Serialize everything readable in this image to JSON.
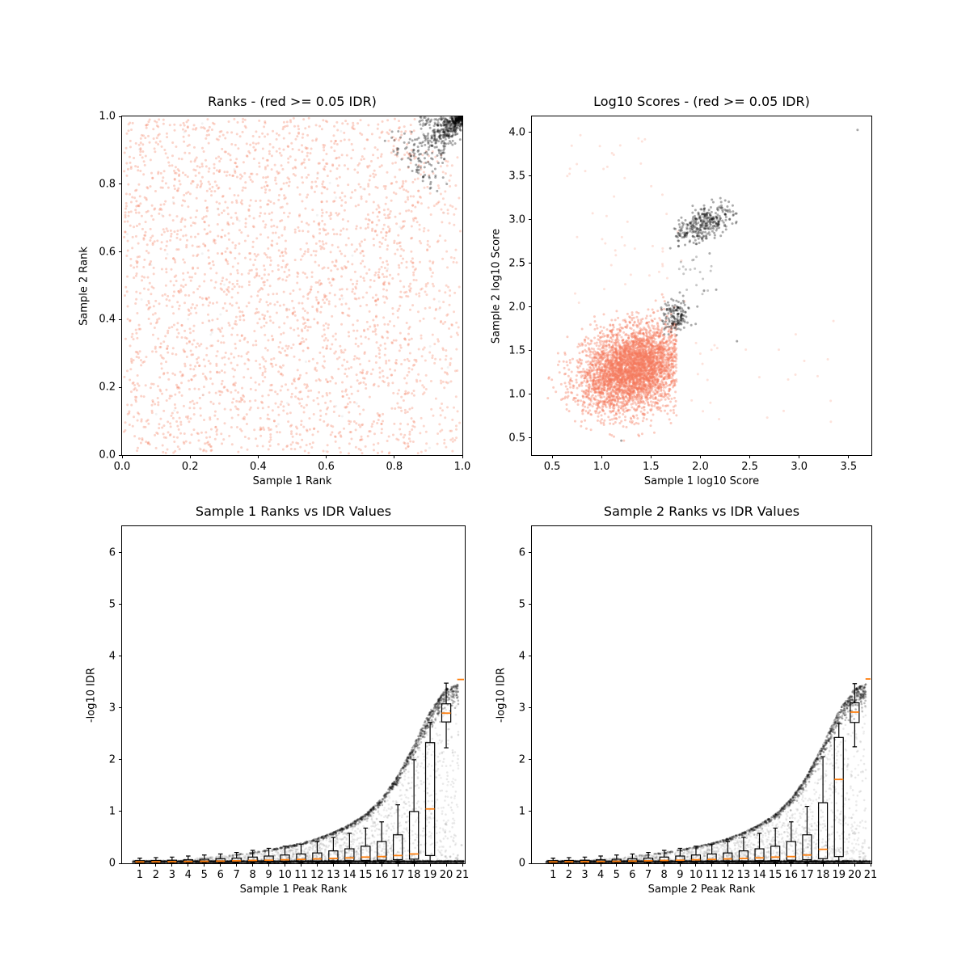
{
  "figure": {
    "background": "#ffffff"
  },
  "colors": {
    "red_point": "#f4795b",
    "black_point": "#000000",
    "gray_point": "#808080",
    "median_orange": "#ff7f0e",
    "box_edge": "#000000",
    "spine": "#000000",
    "text": "#000000"
  },
  "chart_data": [
    {
      "id": "ranks-scatter",
      "type": "scatter",
      "title": "Ranks - (red >= 0.05 IDR)",
      "xlabel": "Sample 1 Rank",
      "ylabel": "Sample 2 Rank",
      "xlim": [
        0,
        1
      ],
      "ylim": [
        0,
        1
      ],
      "grid": false,
      "xticks": {
        "vals": [
          0.0,
          0.2,
          0.4,
          0.6,
          0.8,
          1.0
        ],
        "labels": [
          "0.0",
          "0.2",
          "0.4",
          "0.6",
          "0.8",
          "1.0"
        ]
      },
      "yticks": {
        "vals": [
          0.0,
          0.2,
          0.4,
          0.6,
          0.8,
          1.0
        ],
        "labels": [
          "0.0",
          "0.2",
          "0.4",
          "0.6",
          "0.8",
          "1.0"
        ]
      },
      "legend_note": "red points = IDR >= 0.05 (irreproducible), black points = IDR < 0.05 (reproducible, clustered at top-right corner)",
      "clusters": [
        {
          "type": "uniform",
          "n": 2600,
          "x": [
            0.005,
            0.862
          ],
          "y": [
            0.005,
            0.995
          ],
          "color": "red",
          "alpha": 0.32,
          "r": 1.5
        },
        {
          "type": "uniform",
          "n": 240,
          "x": [
            0.862,
            0.995
          ],
          "y": [
            0.005,
            0.9
          ],
          "color": "red",
          "alpha": 0.3,
          "r": 1.5
        },
        {
          "type": "uniform",
          "n": 50,
          "x": [
            0.01,
            0.99
          ],
          "y": [
            0.01,
            0.99
          ],
          "color": "gray",
          "alpha": 0.1,
          "r": 1.5
        },
        {
          "type": "comet",
          "n": 500,
          "x0": 0.999,
          "y0": 0.999,
          "len": 0.155,
          "s0": 0.004,
          "s1": 0.05,
          "bias": 1.8,
          "color": "black",
          "alpha": 0.33,
          "r": 1.5
        },
        {
          "type": "uniform",
          "n": 70,
          "x": [
            0.875,
            0.999
          ],
          "y": [
            0.972,
            0.999
          ],
          "color": "black",
          "alpha": 0.3,
          "r": 1.5
        }
      ]
    },
    {
      "id": "log10-scores-scatter",
      "type": "scatter",
      "title": "Log10 Scores - (red >= 0.05 IDR)",
      "xlabel": "Sample 1 log10 Score",
      "ylabel": "Sample 2 log10 Score",
      "xlim": [
        0.295,
        3.73
      ],
      "ylim": [
        0.305,
        4.185
      ],
      "grid": false,
      "xticks": {
        "vals": [
          0.5,
          1.0,
          1.5,
          2.0,
          2.5,
          3.0,
          3.5
        ],
        "labels": [
          "0.5",
          "1.0",
          "1.5",
          "2.0",
          "2.5",
          "3.0",
          "3.5"
        ]
      },
      "yticks": {
        "vals": [
          0.5,
          1.0,
          1.5,
          2.0,
          2.5,
          3.0,
          3.5,
          4.0
        ],
        "labels": [
          "0.5",
          "1.0",
          "1.5",
          "2.0",
          "2.5",
          "3.0",
          "3.5",
          "4.0"
        ]
      },
      "legend_note": "red cluster centered near (1.3,1.3); black reproducible clusters near (1.75,1.9) and (2.0,3.0); lone black point near (3.6,4.0)",
      "clusters": [
        {
          "type": "gauss",
          "n": 3900,
          "cx": 1.32,
          "cy": 1.3,
          "sx": 0.27,
          "sy": 0.25,
          "corr": 0.25,
          "clipx": [
            0.44,
            1.76
          ],
          "clipy": [
            0.46,
            2.25
          ],
          "color": "red",
          "alpha": 0.38,
          "r": 1.5
        },
        {
          "type": "uniform",
          "n": 50,
          "x": [
            0.62,
            1.85
          ],
          "y": [
            2.0,
            4.05
          ],
          "color": "red",
          "alpha": 0.22,
          "r": 1.5
        },
        {
          "type": "uniform",
          "n": 26,
          "x": [
            1.85,
            3.35
          ],
          "y": [
            0.6,
            1.85
          ],
          "color": "red",
          "alpha": 0.22,
          "r": 1.5
        },
        {
          "type": "gauss",
          "n": 320,
          "cx": 2.02,
          "cy": 2.95,
          "sx": 0.15,
          "sy": 0.11,
          "corr": 0.55,
          "clipx": [
            1.68,
            2.38
          ],
          "clipy": [
            2.42,
            3.25
          ],
          "color": "black",
          "alpha": 0.33,
          "r": 1.5
        },
        {
          "type": "gauss",
          "n": 150,
          "cx": 1.74,
          "cy": 1.88,
          "sx": 0.08,
          "sy": 0.11,
          "corr": 0.2,
          "clipx": [
            1.6,
            2.02
          ],
          "clipy": [
            1.68,
            2.3
          ],
          "color": "black",
          "alpha": 0.33,
          "r": 1.5
        },
        {
          "type": "uniform",
          "n": 20,
          "x": [
            1.78,
            2.12
          ],
          "y": [
            2.15,
            2.58
          ],
          "color": "black",
          "alpha": 0.22,
          "r": 1.5
        },
        {
          "type": "points",
          "pts": [
            [
              3.59,
              4.03
            ],
            [
              2.37,
              1.61
            ],
            [
              2.16,
              2.2
            ],
            [
              1.2,
              0.47
            ]
          ],
          "color": "black",
          "alpha": 0.35,
          "r": 1.5
        }
      ]
    },
    {
      "id": "sample1-rank-idr",
      "type": "box_scatter",
      "title": "Sample 1 Ranks vs IDR Values",
      "xlabel": "Sample 1 Peak Rank",
      "ylabel": "-log10 IDR",
      "xlim": [
        -0.1,
        21.15
      ],
      "ylim": [
        0,
        6.51
      ],
      "grid": false,
      "xticks": {
        "vals": [
          1,
          2,
          3,
          4,
          5,
          6,
          7,
          8,
          9,
          10,
          11,
          12,
          13,
          14,
          15,
          16,
          17,
          18,
          19,
          20,
          21
        ],
        "labels": [
          "1",
          "2",
          "3",
          "4",
          "5",
          "6",
          "7",
          "8",
          "9",
          "10",
          "11",
          "12",
          "13",
          "14",
          "15",
          "16",
          "17",
          "18",
          "19",
          "20",
          "21"
        ]
      },
      "yticks": {
        "vals": [
          0,
          1,
          2,
          3,
          4,
          5,
          6
        ],
        "labels": [
          "0",
          "1",
          "2",
          "3",
          "4",
          "5",
          "6"
        ]
      },
      "envelope": [
        0.04,
        0.05,
        0.06,
        0.07,
        0.09,
        0.11,
        0.14,
        0.17,
        0.21,
        0.26,
        0.32,
        0.39,
        0.48,
        0.6,
        0.75,
        0.95,
        1.25,
        1.7,
        2.3,
        2.95,
        3.38,
        3.5
      ],
      "boxes": [
        [
          1,
          0.005,
          0.012,
          0.028,
          0.05,
          0.1
        ],
        [
          2,
          0.005,
          0.013,
          0.03,
          0.055,
          0.11
        ],
        [
          3,
          0.005,
          0.015,
          0.032,
          0.06,
          0.12
        ],
        [
          4,
          0.005,
          0.016,
          0.035,
          0.068,
          0.14
        ],
        [
          5,
          0.005,
          0.018,
          0.038,
          0.078,
          0.16
        ],
        [
          6,
          0.005,
          0.02,
          0.042,
          0.09,
          0.18
        ],
        [
          7,
          0.005,
          0.022,
          0.048,
          0.1,
          0.21
        ],
        [
          8,
          0.005,
          0.025,
          0.055,
          0.12,
          0.25
        ],
        [
          9,
          0.005,
          0.028,
          0.06,
          0.14,
          0.29
        ],
        [
          10,
          0.005,
          0.032,
          0.068,
          0.16,
          0.33
        ],
        [
          11,
          0.005,
          0.035,
          0.075,
          0.18,
          0.37
        ],
        [
          12,
          0.005,
          0.04,
          0.085,
          0.2,
          0.42
        ],
        [
          13,
          0.005,
          0.045,
          0.095,
          0.24,
          0.5
        ],
        [
          14,
          0.005,
          0.05,
          0.105,
          0.28,
          0.58
        ],
        [
          15,
          0.005,
          0.055,
          0.12,
          0.33,
          0.68
        ],
        [
          16,
          0.005,
          0.06,
          0.13,
          0.42,
          0.8
        ],
        [
          17,
          0.005,
          0.07,
          0.15,
          0.55,
          1.13
        ],
        [
          18,
          0.01,
          0.08,
          0.18,
          1.0,
          2.0
        ],
        [
          19,
          0.03,
          0.15,
          1.05,
          2.33,
          2.72
        ],
        [
          20,
          2.23,
          2.73,
          2.9,
          3.08,
          3.48
        ],
        [
          21,
          null,
          null,
          3.55,
          null,
          null
        ]
      ],
      "clusters": [
        {
          "type": "uniform",
          "n": 2400,
          "x": [
            0.55,
            21.1
          ],
          "y": [
            0.012,
            0.05
          ],
          "color": "black",
          "alpha": 0.16,
          "r": 1.3
        },
        {
          "type": "uniform",
          "n": 1300,
          "x": [
            0.55,
            21.1
          ],
          "y": [
            0.02,
            0.04
          ],
          "color": "black",
          "alpha": 0.2,
          "r": 1.2
        },
        {
          "type": "curve",
          "n": 950,
          "xr": [
            5.5,
            20.75
          ],
          "bias": 0.45,
          "jit": 0.05,
          "color": "black",
          "alpha": 0.26,
          "r": 1.3
        },
        {
          "type": "wedge",
          "n": 1500,
          "xr": [
            3.5,
            20.75
          ],
          "pow": 1.9,
          "color": "black",
          "alpha": 0.09,
          "r": 1.3
        },
        {
          "type": "wedge",
          "n": 500,
          "xr": [
            10,
            20.75
          ],
          "pow": 1.1,
          "color": "black",
          "alpha": 0.07,
          "r": 1.3
        },
        {
          "type": "points",
          "pts": [
            [
              19.93,
              0.6
            ],
            [
              20.25,
              0.13
            ],
            [
              20.6,
              0.1
            ],
            [
              20.95,
              0.35
            ],
            [
              20.4,
              0.02
            ]
          ],
          "color": "black",
          "alpha": 0.15,
          "r": 1.4
        }
      ]
    },
    {
      "id": "sample2-rank-idr",
      "type": "box_scatter",
      "title": "Sample 2 Ranks vs IDR Values",
      "xlabel": "Sample 2 Peak Rank",
      "ylabel": "-log10 IDR",
      "xlim": [
        -0.335,
        21.05
      ],
      "ylim": [
        0,
        6.51
      ],
      "grid": false,
      "xticks": {
        "vals": [
          1,
          2,
          3,
          4,
          5,
          6,
          7,
          8,
          9,
          10,
          11,
          12,
          13,
          14,
          15,
          16,
          17,
          18,
          19,
          20,
          21
        ],
        "labels": [
          "1",
          "2",
          "3",
          "4",
          "5",
          "6",
          "7",
          "8",
          "9",
          "10",
          "11",
          "12",
          "13",
          "14",
          "15",
          "16",
          "17",
          "18",
          "19",
          "20",
          "21"
        ]
      },
      "yticks": {
        "vals": [
          0,
          1,
          2,
          3,
          4,
          5,
          6
        ],
        "labels": [
          "0",
          "1",
          "2",
          "3",
          "4",
          "5",
          "6"
        ]
      },
      "envelope": [
        0.04,
        0.05,
        0.06,
        0.07,
        0.09,
        0.11,
        0.14,
        0.17,
        0.21,
        0.26,
        0.32,
        0.39,
        0.48,
        0.6,
        0.75,
        0.95,
        1.25,
        1.7,
        2.3,
        2.95,
        3.38,
        3.5
      ],
      "boxes": [
        [
          1,
          0.005,
          0.012,
          0.028,
          0.05,
          0.1
        ],
        [
          2,
          0.005,
          0.013,
          0.03,
          0.055,
          0.11
        ],
        [
          3,
          0.005,
          0.015,
          0.032,
          0.06,
          0.12
        ],
        [
          4,
          0.005,
          0.016,
          0.035,
          0.068,
          0.14
        ],
        [
          5,
          0.005,
          0.018,
          0.038,
          0.078,
          0.16
        ],
        [
          6,
          0.005,
          0.02,
          0.042,
          0.09,
          0.18
        ],
        [
          7,
          0.005,
          0.022,
          0.048,
          0.1,
          0.21
        ],
        [
          8,
          0.005,
          0.025,
          0.055,
          0.12,
          0.25
        ],
        [
          9,
          0.005,
          0.028,
          0.06,
          0.14,
          0.29
        ],
        [
          10,
          0.005,
          0.032,
          0.068,
          0.16,
          0.33
        ],
        [
          11,
          0.005,
          0.035,
          0.075,
          0.18,
          0.37
        ],
        [
          12,
          0.005,
          0.04,
          0.085,
          0.2,
          0.42
        ],
        [
          13,
          0.005,
          0.045,
          0.095,
          0.24,
          0.5
        ],
        [
          14,
          0.005,
          0.05,
          0.105,
          0.28,
          0.58
        ],
        [
          15,
          0.005,
          0.055,
          0.12,
          0.33,
          0.68
        ],
        [
          16,
          0.005,
          0.06,
          0.13,
          0.42,
          0.8
        ],
        [
          17,
          0.005,
          0.07,
          0.16,
          0.55,
          1.1
        ],
        [
          18,
          0.01,
          0.09,
          0.27,
          1.17,
          2.06
        ],
        [
          19,
          0.03,
          0.13,
          1.62,
          2.43,
          2.7
        ],
        [
          20,
          2.25,
          2.72,
          2.92,
          3.1,
          3.47
        ],
        [
          21,
          null,
          null,
          3.56,
          null,
          null
        ]
      ],
      "clusters": [
        {
          "type": "uniform",
          "n": 2400,
          "x": [
            0.55,
            21.0
          ],
          "y": [
            0.012,
            0.05
          ],
          "color": "black",
          "alpha": 0.16,
          "r": 1.3
        },
        {
          "type": "uniform",
          "n": 1300,
          "x": [
            0.55,
            21.0
          ],
          "y": [
            0.02,
            0.04
          ],
          "color": "black",
          "alpha": 0.2,
          "r": 1.2
        },
        {
          "type": "curve",
          "n": 950,
          "xr": [
            5.5,
            20.7
          ],
          "bias": 0.45,
          "jit": 0.05,
          "color": "black",
          "alpha": 0.26,
          "r": 1.3
        },
        {
          "type": "wedge",
          "n": 1500,
          "xr": [
            3.5,
            20.7
          ],
          "pow": 1.9,
          "color": "black",
          "alpha": 0.09,
          "r": 1.3
        },
        {
          "type": "wedge",
          "n": 500,
          "xr": [
            10,
            20.7
          ],
          "pow": 1.1,
          "color": "black",
          "alpha": 0.07,
          "r": 1.3
        },
        {
          "type": "points",
          "pts": [
            [
              19.9,
              0.58
            ],
            [
              20.3,
              0.12
            ],
            [
              20.55,
              0.08
            ],
            [
              20.9,
              0.3
            ],
            [
              20.45,
              0.02
            ]
          ],
          "color": "black",
          "alpha": 0.15,
          "r": 1.4
        }
      ]
    }
  ]
}
